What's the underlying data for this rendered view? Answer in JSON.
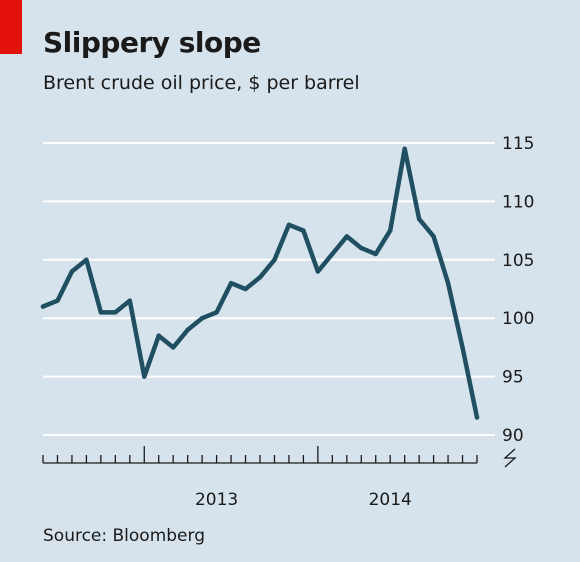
{
  "header": {
    "title": "Slippery slope",
    "subtitle": "Brent crude oil price, $ per barrel"
  },
  "footer": {
    "source": "Source: Bloomberg"
  },
  "colors": {
    "background": "#d6e3ec",
    "line": "#1f4f61",
    "accent": "#e3120b",
    "grid": "#ffffff"
  },
  "chart_data": {
    "type": "line",
    "title": "Slippery slope",
    "subtitle": "Brent crude oil price, $ per barrel",
    "xlabel": "",
    "ylabel": "",
    "ylim": [
      90,
      115
    ],
    "yticks": [
      90,
      95,
      100,
      105,
      110,
      115
    ],
    "y_axis_side": "right",
    "y_axis_break": true,
    "xlim": [
      "2012-06",
      "2014-12"
    ],
    "xtick_labels": [
      {
        "label": "2013",
        "x": "2013-06"
      },
      {
        "label": "2014",
        "x": "2014-06"
      }
    ],
    "grid": true,
    "series": [
      {
        "name": "",
        "x": [
          "2012-06",
          "2012-07",
          "2012-08",
          "2012-09",
          "2012-10",
          "2012-11",
          "2012-12",
          "2013-01",
          "2013-02",
          "2013-03",
          "2013-04",
          "2013-05",
          "2013-06",
          "2013-07",
          "2013-08",
          "2013-09",
          "2013-10",
          "2013-11",
          "2013-12",
          "2014-01",
          "2014-02",
          "2014-03",
          "2014-04",
          "2014-05",
          "2014-06",
          "2014-07",
          "2014-08",
          "2014-09",
          "2014-10",
          "2014-11",
          "2014-12"
        ],
        "values": [
          101,
          101.5,
          104,
          105,
          100.5,
          100.5,
          101.5,
          95,
          98.5,
          97.5,
          99,
          100,
          100.5,
          103,
          102.5,
          103.5,
          105,
          108,
          107.5,
          104,
          105.5,
          107,
          106,
          105.5,
          107.5,
          114.5,
          108.5,
          107,
          103,
          97.5,
          91.5
        ]
      }
    ]
  }
}
